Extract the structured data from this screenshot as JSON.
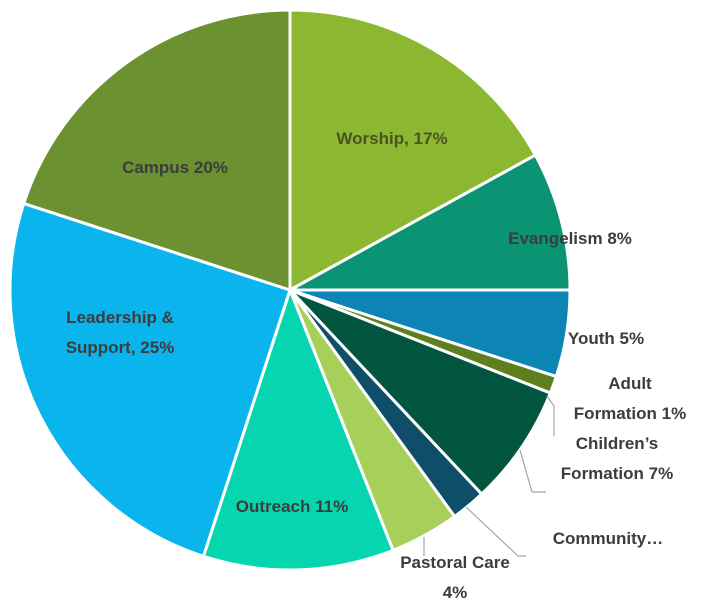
{
  "chart_data": {
    "type": "pie",
    "title": "",
    "slices": [
      {
        "name": "Worship",
        "value": 17,
        "label_lines": [
          "Worship, 17%"
        ],
        "color": "#8cb831",
        "text_color": "#4b5320"
      },
      {
        "name": "Evangelism",
        "value": 8,
        "label_lines": [
          "Evangelism 8%"
        ],
        "color": "#0b9473",
        "text_color": "#3c3c3c"
      },
      {
        "name": "Youth",
        "value": 5,
        "label_lines": [
          "Youth  5%"
        ],
        "color": "#0c85b5",
        "text_color": "#3c3c3c"
      },
      {
        "name": "Adult Formation",
        "value": 1,
        "label_lines": [
          "Adult",
          "Formation  1%"
        ],
        "color": "#5d7f1e",
        "text_color": "#3c3c3c"
      },
      {
        "name": "Children's Formation",
        "value": 7,
        "label_lines": [
          "Children’s",
          "Formation  7%"
        ],
        "color": "#02563f",
        "text_color": "#3c3c3c"
      },
      {
        "name": "Community",
        "value": 2,
        "label_lines": [
          "Community…"
        ],
        "color": "#0e4e68",
        "text_color": "#3c3c3c"
      },
      {
        "name": "Pastoral Care",
        "value": 4,
        "label_lines": [
          "Pastoral Care",
          "4%"
        ],
        "color": "#a6d05a",
        "text_color": "#3c3c3c"
      },
      {
        "name": "Outreach",
        "value": 11,
        "label_lines": [
          "Outreach   11%"
        ],
        "color": "#05d6b0",
        "text_color": "#3c3c3c"
      },
      {
        "name": "Leadership & Support",
        "value": 25,
        "label_lines": [
          "Leadership &",
          "Support,  25%"
        ],
        "color": "#0ab4ec",
        "text_color": "#3c3c3c"
      },
      {
        "name": "Campus",
        "value": 20,
        "label_lines": [
          "Campus  20%"
        ],
        "color": "#6b9130",
        "text_color": "#3c3c3c"
      }
    ],
    "start_angle": "12 o'clock",
    "direction": "clockwise"
  }
}
